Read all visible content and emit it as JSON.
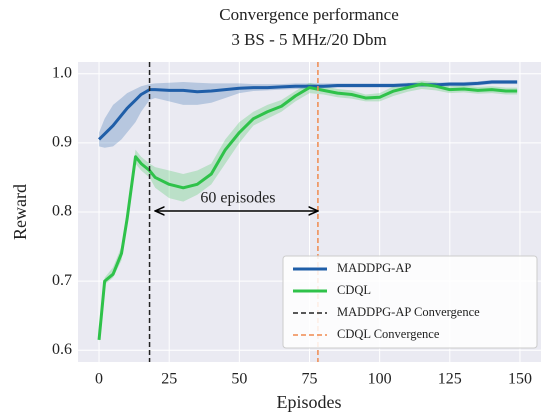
{
  "chart_data": {
    "type": "line",
    "title": "Convergence performance",
    "subtitle": "3 BS - 5 MHz/20 Dbm",
    "xlabel": "Episodes",
    "ylabel": "Reward",
    "x": [
      0,
      2,
      5,
      8,
      10,
      13,
      15,
      18,
      20,
      25,
      30,
      35,
      40,
      45,
      50,
      55,
      60,
      65,
      70,
      75,
      80,
      85,
      90,
      95,
      100,
      105,
      110,
      115,
      120,
      125,
      130,
      135,
      140,
      145,
      149
    ],
    "series": [
      {
        "name": "MADDPG-AP",
        "color": "#1f5ea8",
        "values": [
          0.905,
          0.913,
          0.925,
          0.94,
          0.95,
          0.962,
          0.97,
          0.977,
          0.977,
          0.976,
          0.976,
          0.974,
          0.975,
          0.977,
          0.979,
          0.98,
          0.98,
          0.981,
          0.982,
          0.982,
          0.982,
          0.983,
          0.983,
          0.983,
          0.983,
          0.983,
          0.984,
          0.984,
          0.984,
          0.985,
          0.985,
          0.986,
          0.988,
          0.988,
          0.988
        ],
        "lower": [
          0.895,
          0.893,
          0.895,
          0.905,
          0.915,
          0.93,
          0.945,
          0.962,
          0.965,
          0.96,
          0.955,
          0.955,
          0.958,
          0.965,
          0.972,
          0.975,
          0.976,
          0.977,
          0.978,
          0.978,
          0.979,
          0.98,
          0.98,
          0.98,
          0.98,
          0.98,
          0.981,
          0.981,
          0.981,
          0.982,
          0.982,
          0.983,
          0.985,
          0.985,
          0.985
        ],
        "upper": [
          0.915,
          0.935,
          0.955,
          0.965,
          0.972,
          0.978,
          0.982,
          0.985,
          0.986,
          0.987,
          0.988,
          0.987,
          0.986,
          0.986,
          0.986,
          0.985,
          0.985,
          0.985,
          0.986,
          0.986,
          0.986,
          0.986,
          0.986,
          0.986,
          0.986,
          0.986,
          0.987,
          0.987,
          0.987,
          0.988,
          0.988,
          0.989,
          0.991,
          0.991,
          0.991
        ]
      },
      {
        "name": "CDQL",
        "color": "#2fc24a",
        "values": [
          0.615,
          0.7,
          0.71,
          0.74,
          0.79,
          0.88,
          0.87,
          0.86,
          0.85,
          0.84,
          0.835,
          0.84,
          0.855,
          0.89,
          0.915,
          0.935,
          0.945,
          0.953,
          0.968,
          0.98,
          0.976,
          0.972,
          0.97,
          0.965,
          0.966,
          0.975,
          0.98,
          0.985,
          0.982,
          0.977,
          0.978,
          0.976,
          0.977,
          0.975,
          0.975
        ],
        "lower": [
          0.61,
          0.695,
          0.705,
          0.73,
          0.78,
          0.87,
          0.86,
          0.85,
          0.835,
          0.82,
          0.815,
          0.825,
          0.84,
          0.87,
          0.9,
          0.925,
          0.935,
          0.945,
          0.96,
          0.972,
          0.97,
          0.966,
          0.964,
          0.96,
          0.96,
          0.968,
          0.974,
          0.978,
          0.976,
          0.972,
          0.973,
          0.971,
          0.972,
          0.97,
          0.97
        ],
        "upper": [
          0.62,
          0.705,
          0.72,
          0.75,
          0.8,
          0.89,
          0.88,
          0.87,
          0.865,
          0.86,
          0.855,
          0.86,
          0.87,
          0.905,
          0.93,
          0.945,
          0.955,
          0.962,
          0.975,
          0.987,
          0.982,
          0.978,
          0.976,
          0.97,
          0.972,
          0.982,
          0.986,
          0.99,
          0.988,
          0.982,
          0.983,
          0.981,
          0.982,
          0.98,
          0.98
        ]
      }
    ],
    "vlines": [
      {
        "name": "MADDPG-AP Convergence",
        "x": 18,
        "color": "#222222"
      },
      {
        "name": "CDQL Convergence",
        "x": 78,
        "color": "#f08a4f"
      }
    ],
    "annotation": {
      "text": "60 episodes",
      "x": 49.5,
      "y": 0.819,
      "arrow_from": 20,
      "arrow_to": 78,
      "arrow_y": 0.8015
    },
    "xlim": [
      -7.5,
      157.5
    ],
    "ylim": [
      0.583,
      1.017
    ],
    "xticks": [
      0,
      25,
      50,
      75,
      100,
      125,
      150
    ],
    "yticks": [
      0.6,
      0.7,
      0.8,
      0.9,
      {
        "value": 1,
        "label": "1.0"
      }
    ],
    "grid": true,
    "legend": "lower right"
  }
}
